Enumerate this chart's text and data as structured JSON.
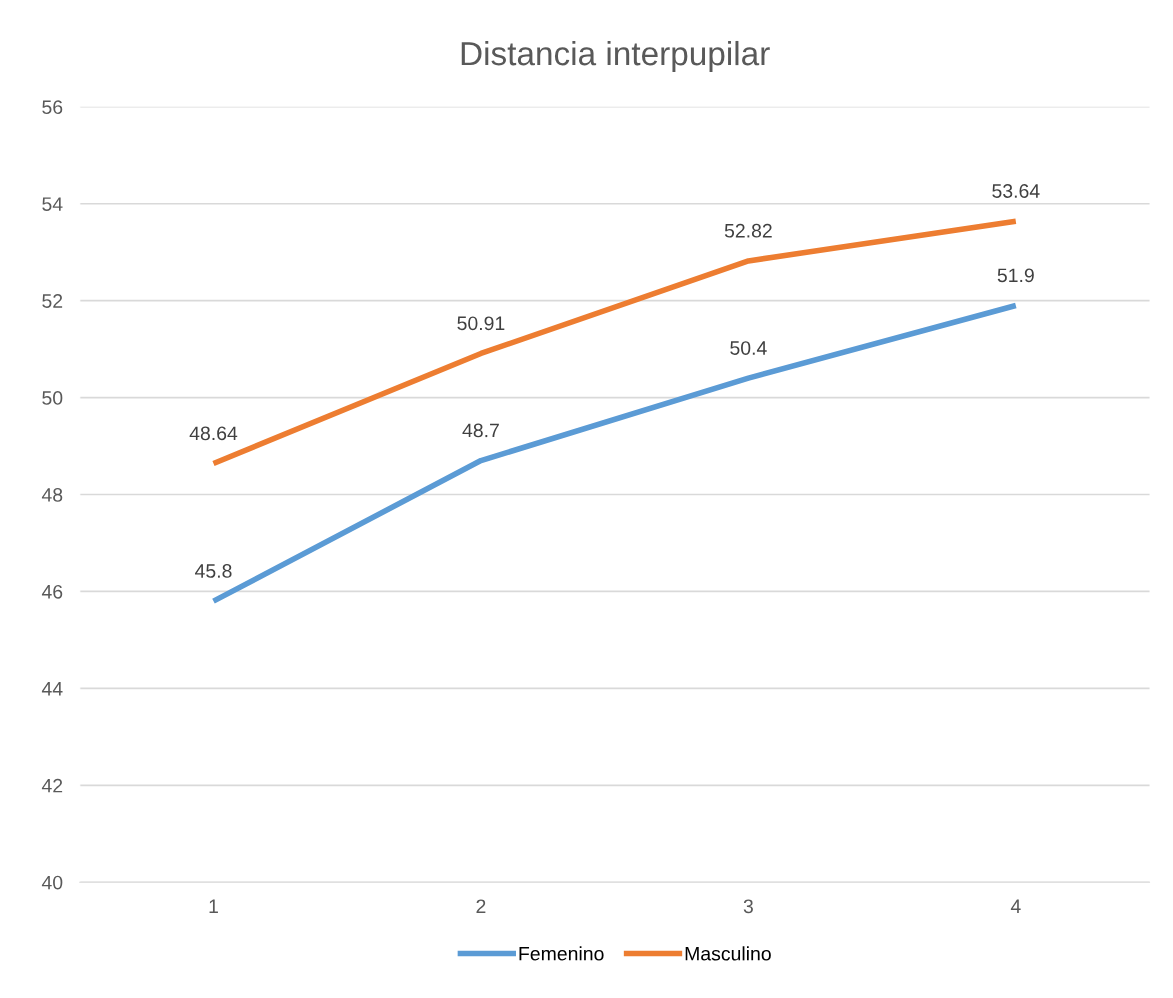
{
  "chart_data": {
    "type": "line",
    "title": "Distancia interpupilar",
    "categories": [
      "1",
      "2",
      "3",
      "4"
    ],
    "series": [
      {
        "name": "Femenino",
        "color": "#5b9bd5",
        "values": [
          45.8,
          48.7,
          50.4,
          51.9
        ]
      },
      {
        "name": "Masculino",
        "color": "#ed7d31",
        "values": [
          48.64,
          50.91,
          52.82,
          53.64
        ]
      }
    ],
    "ylim": [
      40,
      56
    ],
    "yticks": [
      40,
      42,
      44,
      46,
      48,
      50,
      52,
      54,
      56
    ],
    "grid": "y",
    "legend": "bottom",
    "data_labels": true,
    "marker": "none",
    "line_style": "solid"
  }
}
